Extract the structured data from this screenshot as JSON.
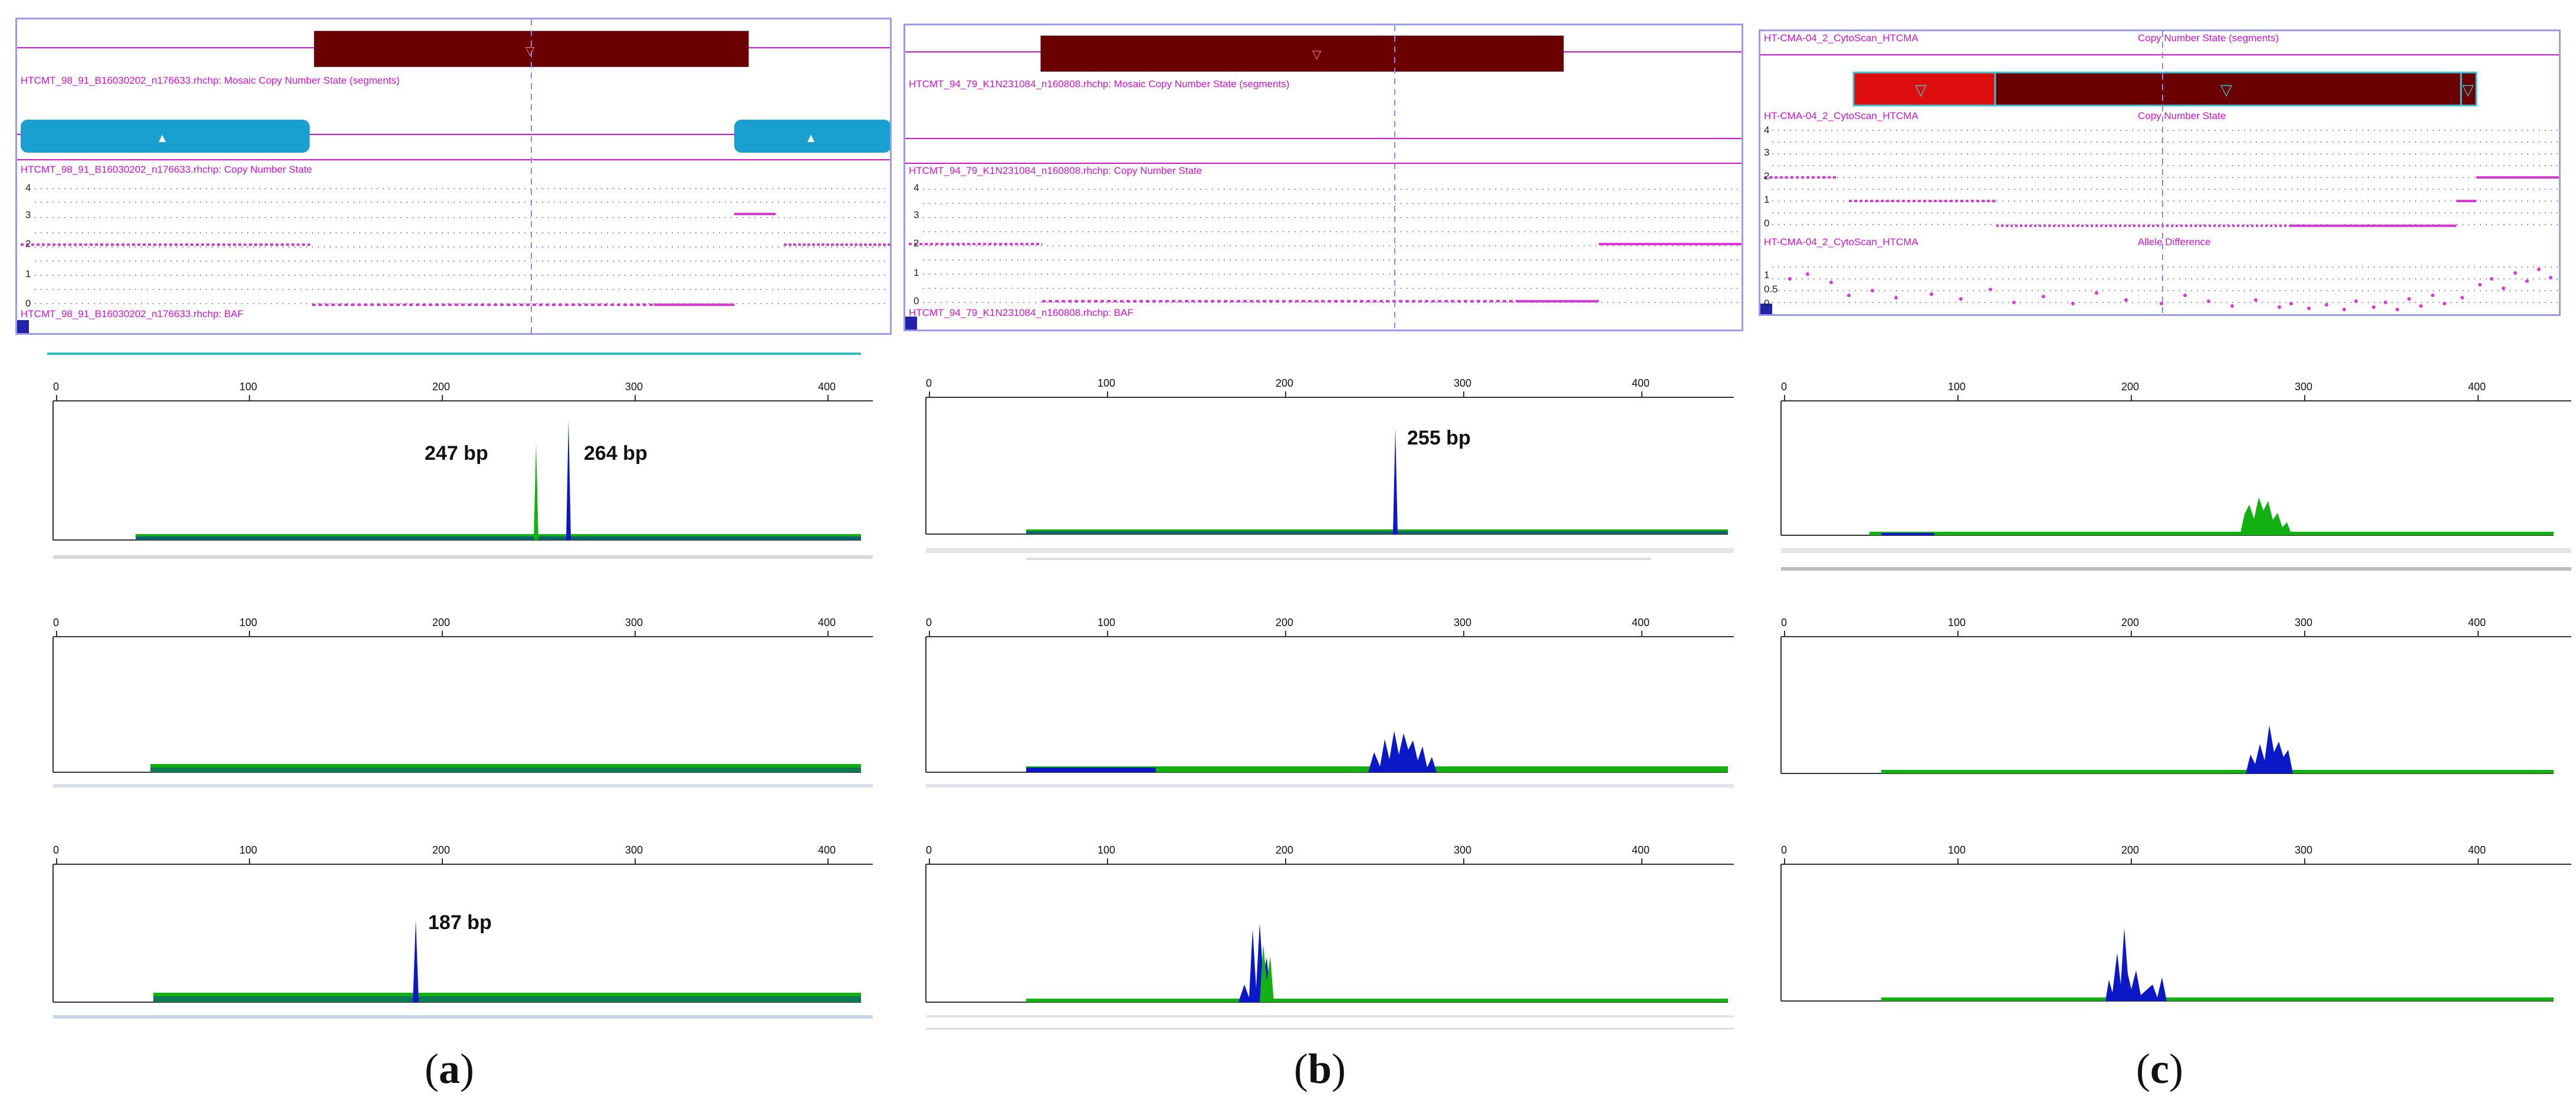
{
  "panels": [
    {
      "caption_letter": "a",
      "cnv": {
        "segments_label": "HTCMT_98_91_B16030202_n176633.rhchp: Mosaic Copy Number State (segments)",
        "cn_label": "HTCMT_98_91_B16030202_n176633.rhchp: Copy Number State",
        "baf_label": "HTCMT_98_91_B16030202_n176633.rhchp: BAF",
        "y_ticks": [
          "4",
          "3",
          "2",
          "1",
          "0"
        ]
      },
      "electropherograms": [
        {
          "x_ticks": [
            "0",
            "100",
            "200",
            "300",
            "400"
          ],
          "peak_labels": [
            "247 bp",
            "264 bp"
          ]
        },
        {
          "x_ticks": [
            "0",
            "100",
            "200",
            "300",
            "400"
          ],
          "peak_labels": []
        },
        {
          "x_ticks": [
            "0",
            "100",
            "200",
            "300",
            "400"
          ],
          "peak_labels": [
            "187 bp"
          ]
        }
      ]
    },
    {
      "caption_letter": "b",
      "cnv": {
        "segments_label": "HTCMT_94_79_K1N231084_n160808.rhchp: Mosaic Copy Number State (segments)",
        "cn_label": "HTCMT_94_79_K1N231084_n160808.rhchp: Copy Number State",
        "baf_label": "HTCMT_94_79_K1N231084_n160808.rhchp: BAF",
        "y_ticks": [
          "4",
          "3",
          "2",
          "1",
          "0"
        ]
      },
      "electropherograms": [
        {
          "x_ticks": [
            "0",
            "100",
            "200",
            "300",
            "400"
          ],
          "peak_labels": [
            "255 bp"
          ]
        },
        {
          "x_ticks": [
            "0",
            "100",
            "200",
            "300",
            "400"
          ],
          "peak_labels": []
        },
        {
          "x_ticks": [
            "0",
            "100",
            "200",
            "300",
            "400"
          ],
          "peak_labels": []
        }
      ]
    },
    {
      "caption_letter": "c",
      "cnv": {
        "segments_label_left": "HT-CMA-04_2_CytoScan_HTCMA",
        "segments_label_right": "Copy Number State (segments)",
        "cn_label_left": "HT-CMA-04_2_CytoScan_HTCMA",
        "cn_label_right": "Copy Number State",
        "ad_label_left": "HT-CMA-04_2_CytoScan_HTCMA",
        "ad_label_right": "Allele Difference",
        "y_ticks": [
          "4",
          "3",
          "2",
          "1",
          "0"
        ],
        "ad_ticks": [
          "1",
          "0.5",
          "0"
        ]
      },
      "electropherograms": [
        {
          "x_ticks": [
            "0",
            "100",
            "200",
            "300",
            "400"
          ],
          "peak_labels": []
        },
        {
          "x_ticks": [
            "0",
            "100",
            "200",
            "300",
            "400"
          ],
          "peak_labels": []
        },
        {
          "x_ticks": [
            "0",
            "100",
            "200",
            "300",
            "400"
          ],
          "peak_labels": []
        }
      ]
    }
  ],
  "colors": {
    "magenta": "#d312d3",
    "segment_dark_red": "#6b0000",
    "segment_red": "#dd0d0d",
    "loh_blue": "#1aa0d0",
    "trace_blue": "#0a18c8",
    "trace_green": "#12b012",
    "panel_border": "#9b9bf0"
  }
}
